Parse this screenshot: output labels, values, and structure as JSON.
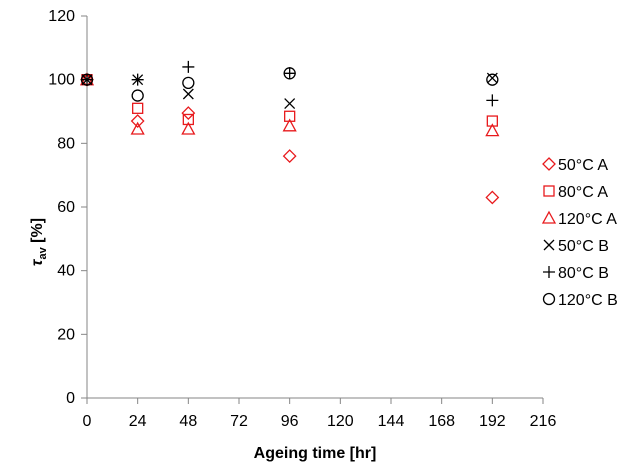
{
  "chart_data": {
    "type": "scatter",
    "xlabel": "Ageing time [hr]",
    "ylabel_symbol": "τ",
    "ylabel_subscript": "av",
    "ylabel_unit": " [%]",
    "x_ticks": [
      0,
      24,
      48,
      72,
      96,
      120,
      144,
      168,
      192,
      216
    ],
    "y_ticks": [
      0,
      20,
      40,
      60,
      80,
      100,
      120
    ],
    "xlim": [
      0,
      216
    ],
    "ylim": [
      0,
      120
    ],
    "grid": false,
    "legend_position": "right",
    "series": [
      {
        "name": "50°C   A",
        "marker": "diamond",
        "color": "#e8191c",
        "points": [
          [
            0,
            100
          ],
          [
            24,
            87
          ],
          [
            48,
            89.5
          ],
          [
            96,
            76
          ],
          [
            192,
            63
          ]
        ]
      },
      {
        "name": "80°C   A",
        "marker": "square",
        "color": "#e8191c",
        "points": [
          [
            0,
            100
          ],
          [
            24,
            91
          ],
          [
            48,
            87.5
          ],
          [
            96,
            88.5
          ],
          [
            192,
            87
          ]
        ]
      },
      {
        "name": "120°C A",
        "marker": "triangle",
        "color": "#e8191c",
        "points": [
          [
            0,
            100
          ],
          [
            24,
            84.5
          ],
          [
            48,
            84.5
          ],
          [
            96,
            85.5
          ],
          [
            192,
            84
          ]
        ]
      },
      {
        "name": "50°C   B",
        "marker": "x",
        "color": "#000000",
        "points": [
          [
            0,
            100
          ],
          [
            24,
            100
          ],
          [
            48,
            95.5
          ],
          [
            96,
            92.5
          ],
          [
            192,
            100.5
          ]
        ]
      },
      {
        "name": "80°C   B",
        "marker": "plus",
        "color": "#000000",
        "points": [
          [
            0,
            100
          ],
          [
            24,
            100
          ],
          [
            48,
            104
          ],
          [
            96,
            102
          ],
          [
            192,
            93.5
          ]
        ]
      },
      {
        "name": "120°C B",
        "marker": "circle",
        "color": "#000000",
        "points": [
          [
            0,
            100
          ],
          [
            24,
            95
          ],
          [
            48,
            99
          ],
          [
            96,
            102
          ],
          [
            192,
            100
          ]
        ]
      }
    ]
  }
}
